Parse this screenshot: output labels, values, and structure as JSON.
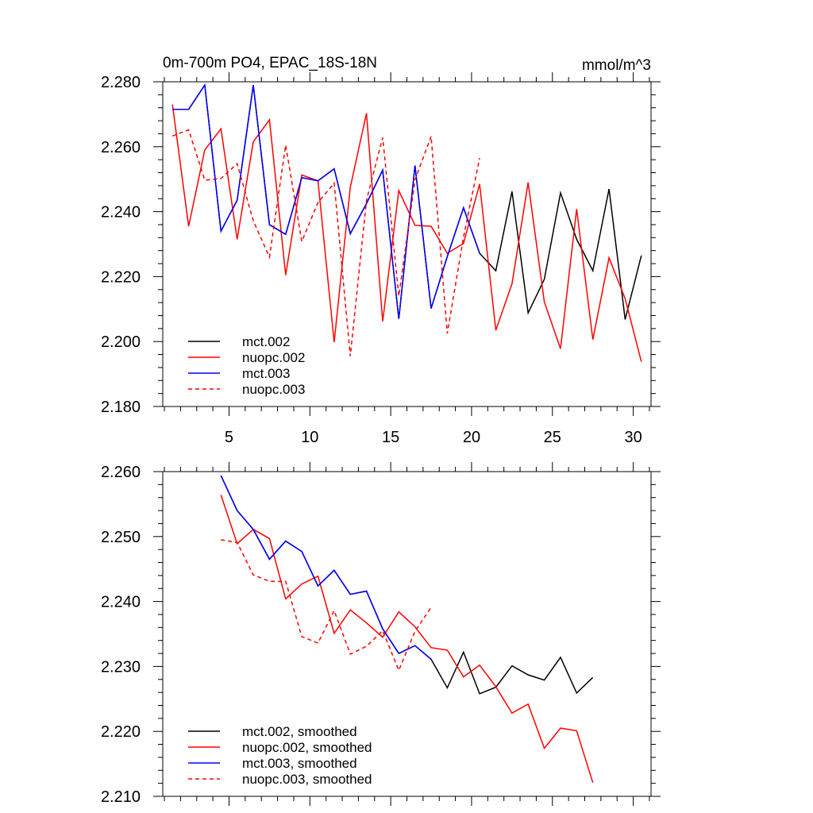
{
  "colors": {
    "black": "#000000",
    "red": "#ff0000",
    "blue": "#0000ff"
  },
  "chart_data": [
    {
      "type": "line",
      "title_left": "0m-700m PO4, EPAC_18S-18N",
      "title_right": "mmol/m^3",
      "xlabel": "",
      "ylabel": "",
      "xlim": [
        0.9,
        31.1
      ],
      "ylim": [
        2.18,
        2.28
      ],
      "xticks": [
        5,
        10,
        15,
        20,
        25,
        30
      ],
      "xtick_labels": [
        "5",
        "10",
        "15",
        "20",
        "25",
        "30"
      ],
      "yticks": [
        2.18,
        2.2,
        2.22,
        2.24,
        2.26,
        2.28
      ],
      "ytick_labels": [
        "2.180",
        "2.200",
        "2.220",
        "2.240",
        "2.260",
        "2.280"
      ],
      "legend_position": "bottom-left",
      "series": [
        {
          "name": "mct.002",
          "color": "#000000",
          "dash": "solid",
          "x": [
            1.5,
            2.5,
            3.5,
            4.5,
            5.5,
            6.5,
            7.5,
            8.5,
            9.5,
            10.5,
            11.5,
            12.5,
            13.5,
            14.5,
            15.5,
            16.5,
            17.5,
            18.5,
            19.5,
            20.5,
            21.5,
            22.5,
            23.5,
            24.5,
            25.5,
            26.5,
            27.5,
            28.5,
            29.5,
            30.5
          ],
          "values": [
            2.2715,
            2.2715,
            2.279,
            2.234,
            2.2435,
            2.279,
            2.236,
            2.233,
            2.2505,
            2.2495,
            2.2532,
            2.2332,
            2.2425,
            2.2528,
            2.207,
            2.2542,
            2.2102,
            2.2262,
            2.2412,
            2.2272,
            2.2218,
            2.2462,
            2.2088,
            2.2192,
            2.2458,
            2.2315,
            2.2218,
            2.247,
            2.2068,
            2.2265
          ]
        },
        {
          "name": "nuopc.002",
          "color": "#ff0000",
          "dash": "solid",
          "x": [
            1.5,
            2.5,
            3.5,
            4.5,
            5.5,
            6.5,
            7.5,
            8.5,
            9.5,
            10.5,
            11.5,
            12.5,
            13.5,
            14.5,
            15.5,
            16.5,
            17.5,
            18.5,
            19.5,
            20.5,
            21.5,
            22.5,
            23.5,
            24.5,
            25.5,
            26.5,
            27.5,
            28.5,
            29.5,
            30.5
          ],
          "values": [
            2.273,
            2.2355,
            2.259,
            2.2655,
            2.2315,
            2.2615,
            2.2683,
            2.2205,
            2.2513,
            2.2495,
            2.1998,
            2.2475,
            2.2703,
            2.2062,
            2.2465,
            2.2358,
            2.2355,
            2.2272,
            2.2302,
            2.2485,
            2.2035,
            2.2178,
            2.249,
            2.2122,
            2.1978,
            2.2408,
            2.2006,
            2.2258,
            2.2132,
            2.1938
          ]
        },
        {
          "name": "mct.003",
          "color": "#0000ff",
          "dash": "solid",
          "x": [
            1.5,
            2.5,
            3.5,
            4.5,
            5.5,
            6.5,
            7.5,
            8.5,
            9.5,
            10.5,
            11.5,
            12.5,
            13.5,
            14.5,
            15.5,
            16.5,
            17.5,
            18.5,
            19.5,
            20.5
          ],
          "values": [
            2.2715,
            2.2715,
            2.279,
            2.234,
            2.2435,
            2.279,
            2.236,
            2.233,
            2.2505,
            2.2495,
            2.2532,
            2.2332,
            2.2425,
            2.2528,
            2.207,
            2.2542,
            2.2102,
            2.2262,
            2.2412,
            2.2272
          ]
        },
        {
          "name": "nuopc.003",
          "color": "#ff0000",
          "dash": "dashed",
          "x": [
            1.5,
            2.5,
            3.5,
            4.5,
            5.5,
            6.5,
            7.5,
            8.5,
            9.5,
            10.5,
            11.5,
            12.5,
            13.5,
            14.5,
            15.5,
            16.5,
            17.5,
            18.5,
            19.5,
            20.5
          ],
          "values": [
            2.2633,
            2.2652,
            2.2497,
            2.2502,
            2.2548,
            2.2372,
            2.226,
            2.2605,
            2.2308,
            2.2428,
            2.2488,
            2.1955,
            2.2435,
            2.2628,
            2.214,
            2.2498,
            2.2632,
            2.2025,
            2.2322,
            2.2565
          ]
        }
      ]
    },
    {
      "type": "line",
      "xlabel": "",
      "ylabel": "",
      "xlim": [
        0.9,
        31.1
      ],
      "ylim": [
        2.21,
        2.26
      ],
      "xticks": [
        5,
        10,
        15,
        20,
        25,
        30
      ],
      "yticks": [
        2.21,
        2.22,
        2.23,
        2.24,
        2.25,
        2.26
      ],
      "ytick_labels": [
        "2.210",
        "2.220",
        "2.230",
        "2.240",
        "2.250",
        "2.260"
      ],
      "legend_position": "bottom-left",
      "series": [
        {
          "name": "mct.002, smoothed",
          "color": "#000000",
          "dash": "solid",
          "x": [
            4.5,
            5.5,
            6.5,
            7.5,
            8.5,
            9.5,
            10.5,
            11.5,
            12.5,
            13.5,
            14.5,
            15.5,
            16.5,
            17.5,
            18.5,
            19.5,
            20.5,
            21.5,
            22.5,
            23.5,
            24.5,
            25.5,
            26.5,
            27.5
          ],
          "values": [
            2.2594,
            2.254,
            2.2511,
            2.2465,
            2.2493,
            2.2477,
            2.2424,
            2.2448,
            2.2411,
            2.2416,
            2.2358,
            2.232,
            2.2332,
            2.2311,
            2.2267,
            2.2322,
            2.2258,
            2.2268,
            2.2301,
            2.2287,
            2.2279,
            2.2314,
            2.2259,
            2.2283
          ]
        },
        {
          "name": "nuopc.002, smoothed",
          "color": "#ff0000",
          "dash": "solid",
          "x": [
            4.5,
            5.5,
            6.5,
            7.5,
            8.5,
            9.5,
            10.5,
            11.5,
            12.5,
            13.5,
            14.5,
            15.5,
            16.5,
            17.5,
            18.5,
            19.5,
            20.5,
            21.5,
            22.5,
            23.5,
            24.5,
            25.5,
            26.5,
            27.5
          ],
          "values": [
            2.2564,
            2.2489,
            2.2511,
            2.2497,
            2.2404,
            2.2427,
            2.2439,
            2.2351,
            2.2387,
            2.2367,
            2.2345,
            2.2384,
            2.2361,
            2.2329,
            2.2325,
            2.2284,
            2.2302,
            2.2269,
            2.2228,
            2.2242,
            2.2174,
            2.2205,
            2.2201,
            2.2121
          ]
        },
        {
          "name": "mct.003, smoothed",
          "color": "#0000ff",
          "dash": "solid",
          "x": [
            4.5,
            5.5,
            6.5,
            7.5,
            8.5,
            9.5,
            10.5,
            11.5,
            12.5,
            13.5,
            14.5,
            15.5,
            16.5,
            17.5
          ],
          "values": [
            2.2594,
            2.254,
            2.2511,
            2.2465,
            2.2493,
            2.2477,
            2.2424,
            2.2448,
            2.2411,
            2.2416,
            2.2358,
            2.232,
            2.2332,
            2.2311
          ]
        },
        {
          "name": "nuopc.003, smoothed",
          "color": "#ff0000",
          "dash": "dashed",
          "x": [
            4.5,
            5.5,
            6.5,
            7.5,
            8.5,
            9.5,
            10.5,
            11.5,
            12.5,
            13.5,
            14.5,
            15.5,
            16.5,
            17.5
          ],
          "values": [
            2.2495,
            2.2491,
            2.2441,
            2.2431,
            2.2431,
            2.2346,
            2.2336,
            2.2386,
            2.2319,
            2.2331,
            2.2355,
            2.2294,
            2.2354,
            2.2391
          ]
        }
      ]
    }
  ]
}
